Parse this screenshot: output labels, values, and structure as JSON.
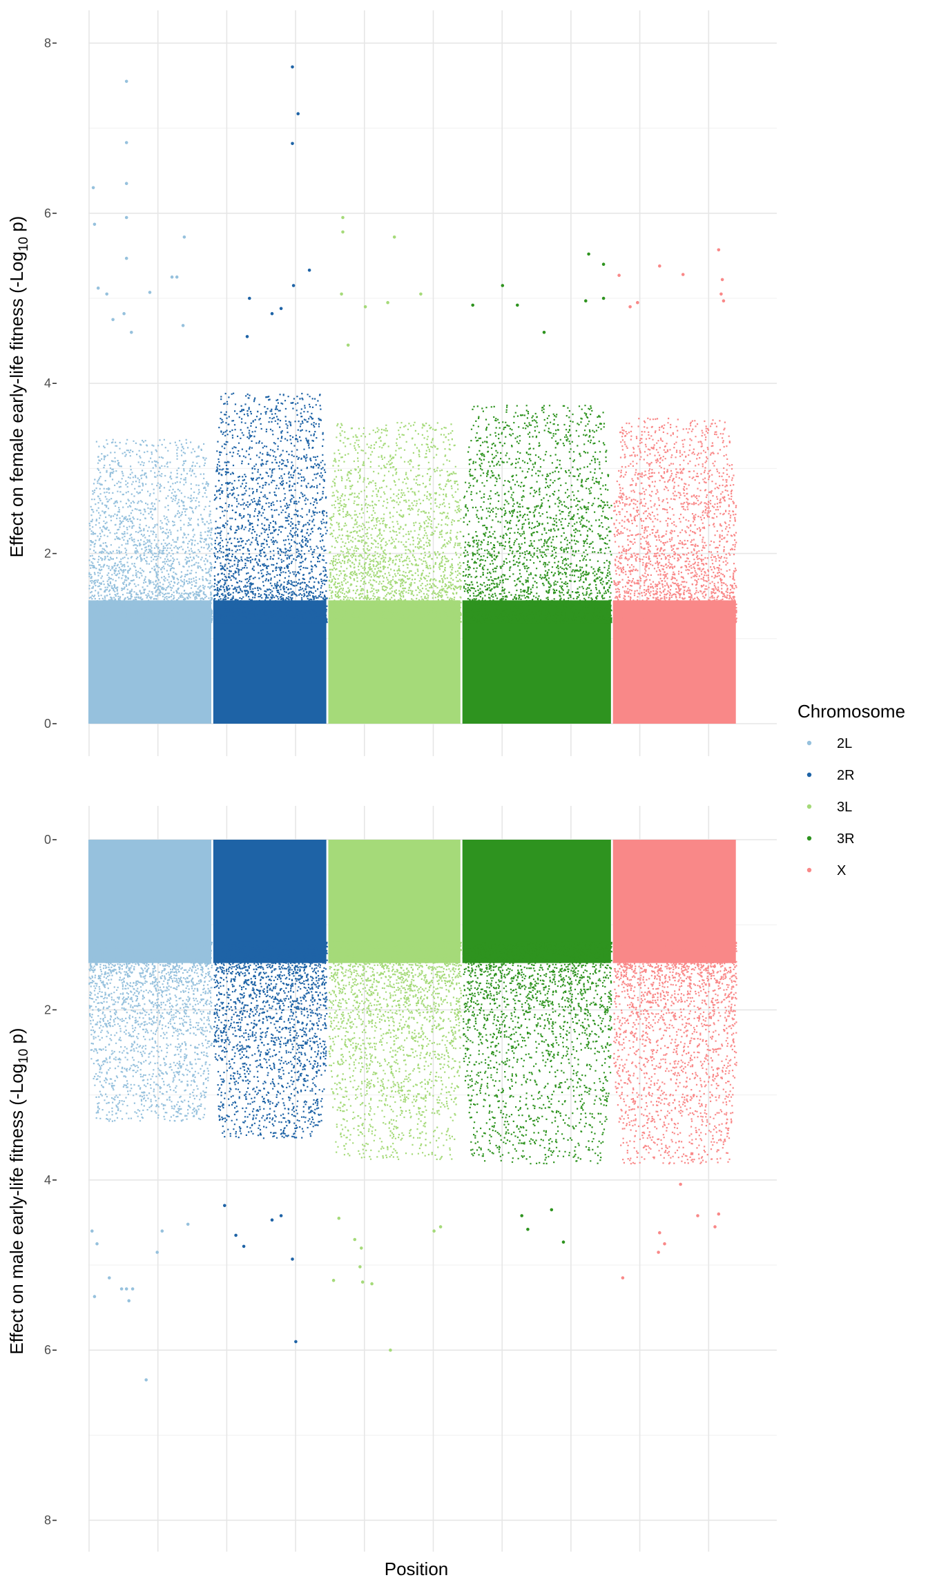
{
  "chart_data": [
    {
      "type": "scatter",
      "panel": "top",
      "title": "",
      "xlabel": "",
      "ylabel_prefix": "Effect on female early-life fitness (-Log",
      "ylabel_sub": "10",
      "ylabel_suffix": " p)",
      "ylim": [
        0,
        8
      ],
      "y_reversed": false,
      "yticks": [
        "0",
        "2",
        "4",
        "6",
        "8"
      ],
      "grid": true,
      "outliers": {
        "2L": [
          [
            0.04,
            6.3
          ],
          [
            0.31,
            7.55
          ],
          [
            0.31,
            6.83
          ],
          [
            0.31,
            6.35
          ],
          [
            0.31,
            5.95
          ],
          [
            0.31,
            5.47
          ],
          [
            0.05,
            5.87
          ],
          [
            0.78,
            5.72
          ],
          [
            0.68,
            5.25
          ],
          [
            0.72,
            5.25
          ],
          [
            0.08,
            5.12
          ],
          [
            0.15,
            5.05
          ],
          [
            0.5,
            5.07
          ],
          [
            0.29,
            4.82
          ],
          [
            0.77,
            4.68
          ],
          [
            0.35,
            4.6
          ],
          [
            0.2,
            4.75
          ]
        ],
        "2R": [
          [
            0.7,
            7.72
          ],
          [
            0.75,
            7.17
          ],
          [
            0.7,
            6.82
          ],
          [
            0.85,
            5.33
          ],
          [
            0.71,
            5.15
          ],
          [
            0.32,
            5.0
          ],
          [
            0.6,
            4.88
          ],
          [
            0.52,
            4.82
          ],
          [
            0.3,
            4.55
          ]
        ],
        "3L": [
          [
            0.11,
            5.95
          ],
          [
            0.11,
            5.78
          ],
          [
            0.5,
            5.72
          ],
          [
            0.1,
            5.05
          ],
          [
            0.28,
            4.9
          ],
          [
            0.7,
            5.05
          ],
          [
            0.45,
            4.95
          ],
          [
            0.15,
            4.45
          ]
        ],
        "3R": [
          [
            0.07,
            4.92
          ],
          [
            0.27,
            5.15
          ],
          [
            0.37,
            4.92
          ],
          [
            0.85,
            5.52
          ],
          [
            0.95,
            5.4
          ],
          [
            0.83,
            4.97
          ],
          [
            0.95,
            5.0
          ],
          [
            0.55,
            4.6
          ]
        ],
        "X": [
          [
            0.05,
            5.27
          ],
          [
            0.38,
            5.38
          ],
          [
            0.57,
            5.28
          ],
          [
            0.86,
            5.57
          ],
          [
            0.89,
            5.22
          ],
          [
            0.9,
            4.97
          ],
          [
            0.88,
            5.05
          ],
          [
            0.2,
            4.95
          ],
          [
            0.14,
            4.9
          ]
        ]
      }
    },
    {
      "type": "scatter",
      "panel": "bottom",
      "title": "",
      "xlabel": "Position",
      "ylabel_prefix": "Effect on male early-life fitness (-Log",
      "ylabel_sub": "10",
      "ylabel_suffix": " p)",
      "ylim": [
        0,
        8
      ],
      "y_reversed": true,
      "yticks": [
        "0",
        "2",
        "4",
        "6",
        "8"
      ],
      "grid": true,
      "outliers": {
        "2L": [
          [
            0.47,
            6.35
          ],
          [
            0.05,
            5.37
          ],
          [
            0.17,
            5.15
          ],
          [
            0.27,
            5.28
          ],
          [
            0.31,
            5.28
          ],
          [
            0.36,
            5.28
          ],
          [
            0.33,
            5.42
          ],
          [
            0.56,
            4.85
          ],
          [
            0.03,
            4.6
          ],
          [
            0.07,
            4.75
          ],
          [
            0.81,
            4.52
          ],
          [
            0.6,
            4.6
          ]
        ],
        "2R": [
          [
            0.73,
            5.9
          ],
          [
            0.7,
            4.93
          ],
          [
            0.2,
            4.65
          ],
          [
            0.27,
            4.78
          ],
          [
            0.52,
            4.47
          ],
          [
            0.6,
            4.42
          ],
          [
            0.1,
            4.3
          ]
        ],
        "3L": [
          [
            0.47,
            6.0
          ],
          [
            0.04,
            5.18
          ],
          [
            0.26,
            5.2
          ],
          [
            0.33,
            5.22
          ],
          [
            0.24,
            5.02
          ],
          [
            0.25,
            4.8
          ],
          [
            0.2,
            4.7
          ],
          [
            0.08,
            4.45
          ],
          [
            0.8,
            4.6
          ],
          [
            0.85,
            4.55
          ]
        ],
        "3R": [
          [
            0.68,
            4.73
          ],
          [
            0.44,
            4.58
          ],
          [
            0.4,
            4.42
          ],
          [
            0.6,
            4.35
          ]
        ],
        "X": [
          [
            0.08,
            5.15
          ],
          [
            0.37,
            4.85
          ],
          [
            0.42,
            4.75
          ],
          [
            0.38,
            4.62
          ],
          [
            0.55,
            4.05
          ],
          [
            0.69,
            4.42
          ],
          [
            0.83,
            4.55
          ],
          [
            0.86,
            4.4
          ]
        ]
      }
    }
  ],
  "chromosomes": [
    {
      "name": "2L",
      "color": "#96C1DD",
      "span": [
        0.0,
        0.187
      ],
      "ceiling": {
        "female": 3.35,
        "male": 3.3
      }
    },
    {
      "name": "2R",
      "color": "#1E63A6",
      "span": [
        0.19,
        0.362
      ],
      "ceiling": {
        "female": 3.9,
        "male": 3.5
      }
    },
    {
      "name": "3L",
      "color": "#A5DA79",
      "span": [
        0.365,
        0.566
      ],
      "ceiling": {
        "female": 3.55,
        "male": 3.75
      }
    },
    {
      "name": "3R",
      "color": "#2E931F",
      "span": [
        0.569,
        0.795
      ],
      "ceiling": {
        "female": 3.75,
        "male": 3.8
      }
    },
    {
      "name": "X",
      "color": "#F98888",
      "span": [
        0.798,
        0.985
      ],
      "ceiling": {
        "female": 3.6,
        "male": 3.8
      }
    }
  ],
  "legend": {
    "title": "Chromosome",
    "placement": "right",
    "items": [
      {
        "label": "2L",
        "color": "#96C1DD"
      },
      {
        "label": "2R",
        "color": "#1E63A6"
      },
      {
        "label": "3L",
        "color": "#A5DA79"
      },
      {
        "label": "3R",
        "color": "#2E931F"
      },
      {
        "label": "X",
        "color": "#F98888"
      }
    ]
  },
  "x_axis_title": "Position",
  "x_gridline_count": 10
}
